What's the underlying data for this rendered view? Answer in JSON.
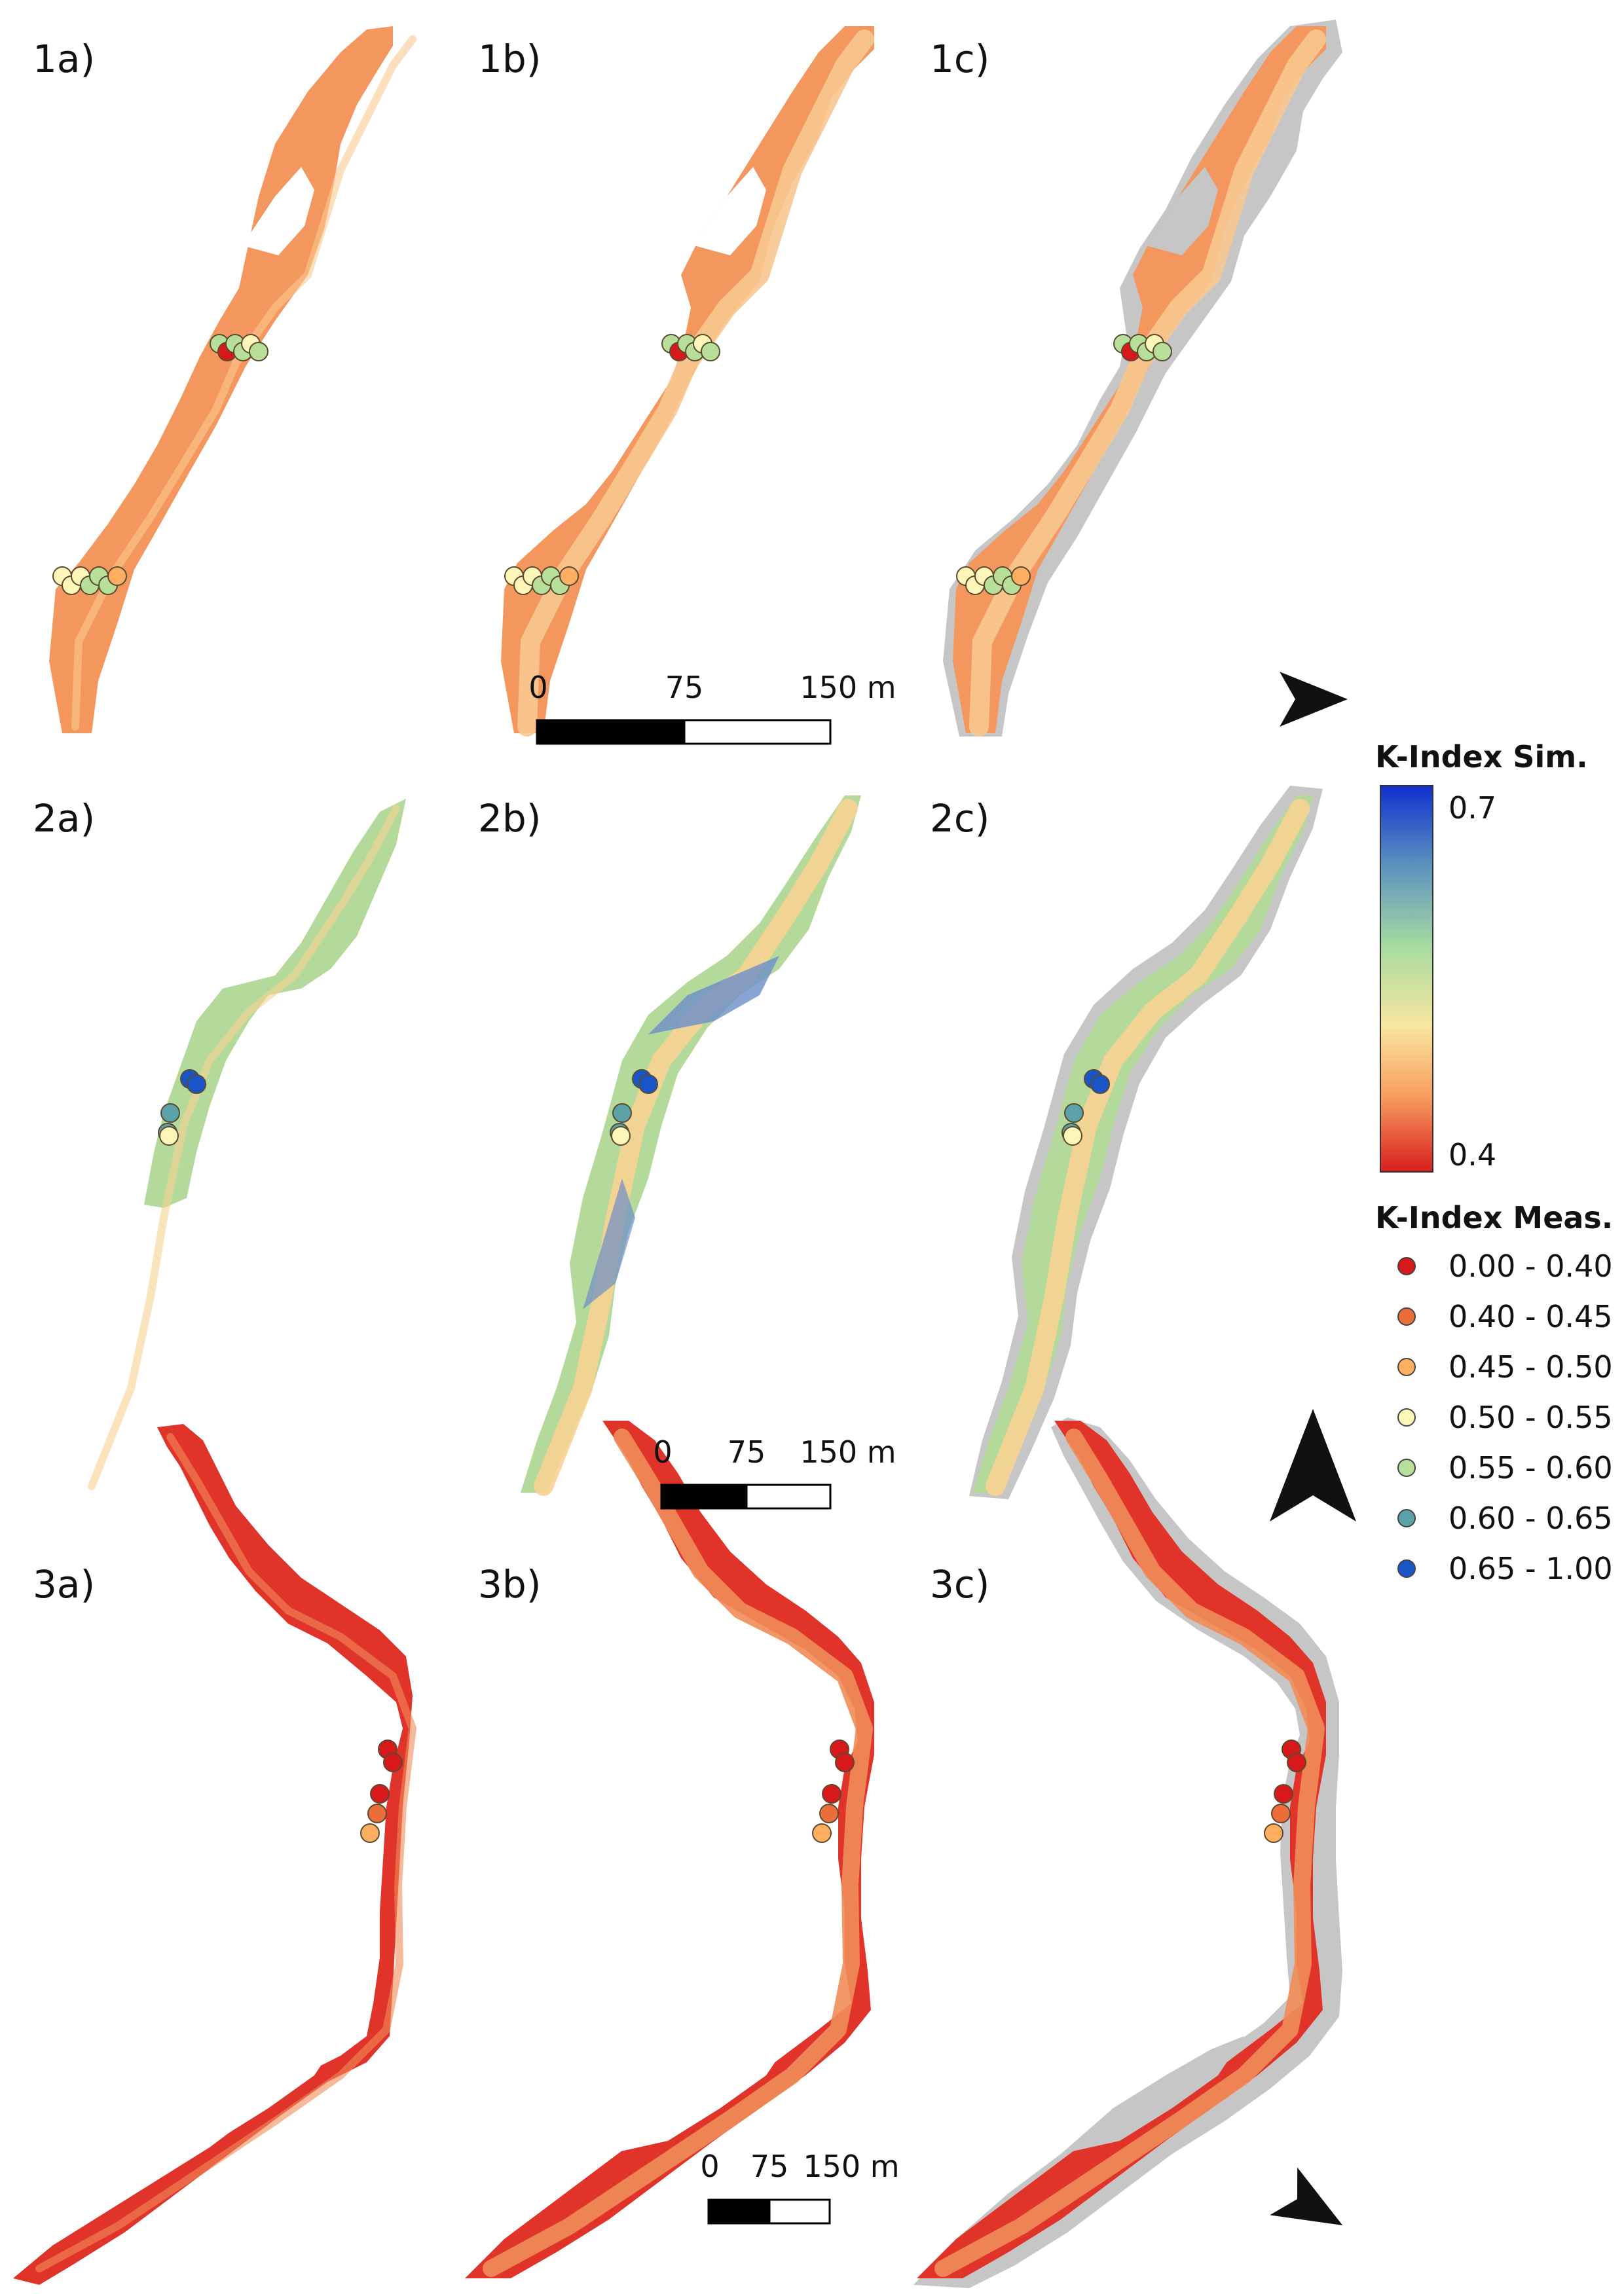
{
  "panels": [
    {
      "id": "1a",
      "label": "1a)",
      "scheme": "orange",
      "extent": "partial"
    },
    {
      "id": "1b",
      "label": "1b)",
      "scheme": "orange",
      "extent": "full"
    },
    {
      "id": "1c",
      "label": "1c)",
      "scheme": "orange",
      "extent": "full-gray"
    },
    {
      "id": "2a",
      "label": "2a)",
      "scheme": "green",
      "extent": "partial"
    },
    {
      "id": "2b",
      "label": "2b)",
      "scheme": "green",
      "extent": "full"
    },
    {
      "id": "2c",
      "label": "2c)",
      "scheme": "green",
      "extent": "full-gray"
    },
    {
      "id": "3a",
      "label": "3a)",
      "scheme": "red",
      "extent": "partial"
    },
    {
      "id": "3b",
      "label": "3b)",
      "scheme": "red",
      "extent": "full"
    },
    {
      "id": "3c",
      "label": "3c)",
      "scheme": "red",
      "extent": "full-gray"
    }
  ],
  "scale_bars": [
    {
      "row": 1,
      "ticks": [
        "0",
        "75",
        "150 m"
      ]
    },
    {
      "row": 2,
      "ticks": [
        "0",
        "75",
        "150 m"
      ]
    },
    {
      "row": 3,
      "ticks": [
        "0",
        "75",
        "150 m"
      ]
    }
  ],
  "north_arrows": [
    {
      "row": 1,
      "icon": "north-arrow-icon",
      "direction": "east"
    },
    {
      "row": 2,
      "icon": "north-arrow-icon",
      "direction": "north"
    },
    {
      "row": 3,
      "icon": "north-arrow-icon",
      "direction": "southeast"
    }
  ],
  "legend": {
    "sim_title": "K-Index Sim.",
    "sim_max": "0.7",
    "sim_min": "0.4",
    "sim_gradient": [
      "#1030d0",
      "#5a8fc0",
      "#a8dca0",
      "#f8e6a0",
      "#f8a060",
      "#d81e1e"
    ],
    "meas_title": "K-Index Meas.",
    "meas_classes": [
      {
        "label": "0.00 - 0.40",
        "color": "#d7191c"
      },
      {
        "label": "0.40 - 0.45",
        "color": "#eb6d3a"
      },
      {
        "label": "0.45 - 0.50",
        "color": "#fdae61"
      },
      {
        "label": "0.50 - 0.55",
        "color": "#fef6b8"
      },
      {
        "label": "0.55 - 0.60",
        "color": "#b7df9a"
      },
      {
        "label": "0.60 - 0.65",
        "color": "#5ba3a8"
      },
      {
        "label": "0.65 - 1.00",
        "color": "#1a55c8"
      }
    ]
  },
  "colors": {
    "orange_fill": "#f4975e",
    "orange_channel": "#f8c890",
    "green_fill": "#b3d99b",
    "green_channel": "#f7d292",
    "green_deep": "#6d8fc9",
    "red_fill": "#e0332a",
    "red_channel": "#f08c58",
    "gray_extent": "#c6c6c6",
    "marker_stroke": "#5a4a30"
  },
  "measurement_points": {
    "row1_upper": [
      4,
      0,
      4,
      4,
      3,
      4
    ],
    "row1_lower": [
      3,
      3,
      3,
      4,
      4,
      4,
      2
    ],
    "row2": [
      6,
      6,
      5,
      5,
      3
    ],
    "row3": [
      0,
      0,
      0,
      1,
      2
    ]
  }
}
